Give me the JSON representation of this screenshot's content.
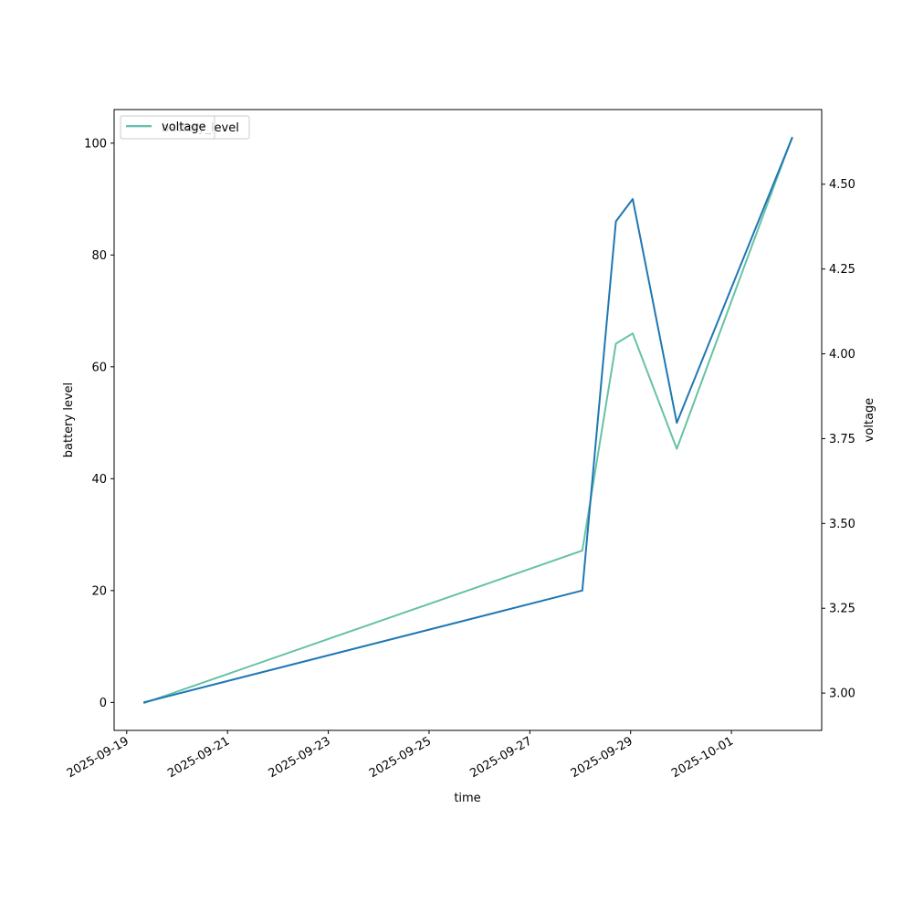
{
  "chart_data": {
    "type": "line",
    "xlabel": "time",
    "ylabel_left": "battery level",
    "ylabel_right": "voltage",
    "x_ticks": [
      "2025-09-19",
      "2025-09-21",
      "2025-09-23",
      "2025-09-25",
      "2025-09-27",
      "2025-09-29",
      "2025-10-01"
    ],
    "x_range": [
      "2025-09-18 18:00",
      "2025-10-02 19:00"
    ],
    "ylim_left": [
      -5,
      106
    ],
    "ylim_right": [
      2.89,
      4.72
    ],
    "y_ticks_left": [
      0,
      20,
      40,
      60,
      80,
      100
    ],
    "y_ticks_right": [
      3.0,
      3.25,
      3.5,
      3.75,
      4.0,
      4.25,
      4.5
    ],
    "y_ticks_right_labels": [
      "3.00",
      "3.25",
      "3.50",
      "3.75",
      "4.00",
      "4.25",
      "4.50"
    ],
    "grid": false,
    "legend_placement": "upper-left",
    "legend_entries": [
      "battery_level",
      "voltage"
    ],
    "series": [
      {
        "name": "battery_level",
        "axis": "left",
        "color": "#1f77b4",
        "x": [
          "2025-09-19 08:00",
          "2025-09-28 01:00",
          "2025-09-28 17:00",
          "2025-09-29 01:00",
          "2025-09-29 22:00",
          "2025-10-02 05:00"
        ],
        "values": [
          0,
          20,
          86,
          90,
          50,
          101
        ]
      },
      {
        "name": "voltage",
        "axis": "right",
        "color": "#66c2a5",
        "x": [
          "2025-09-19 08:00",
          "2025-09-28 01:00",
          "2025-09-28 17:00",
          "2025-09-29 01:00",
          "2025-09-29 22:00",
          "2025-10-02 05:00"
        ],
        "values": [
          2.97,
          3.42,
          4.03,
          4.06,
          3.72,
          4.64
        ]
      }
    ]
  }
}
